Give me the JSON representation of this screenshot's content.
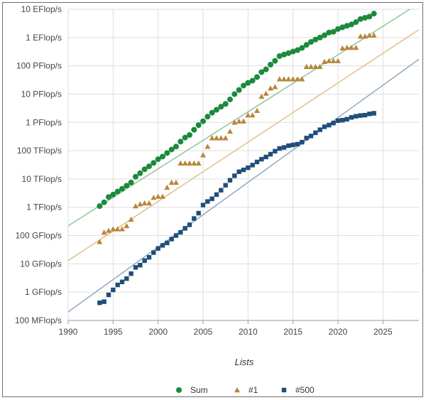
{
  "chart_data": {
    "type": "scatter",
    "title": "",
    "xlabel": "Lists",
    "ylabel": "",
    "y_scale": "log",
    "grid": true,
    "legend_position": "bottom",
    "xlim": [
      1990,
      2029
    ],
    "ylim": [
      100000000.0,
      1e+19
    ],
    "x_ticks": [
      1990,
      1995,
      2000,
      2005,
      2010,
      2015,
      2020,
      2025
    ],
    "y_ticks": [
      {
        "value": 100000000.0,
        "label": "100 MFlop/s"
      },
      {
        "value": 1000000000.0,
        "label": "1 GFlop/s"
      },
      {
        "value": 10000000000.0,
        "label": "10 GFlop/s"
      },
      {
        "value": 100000000000.0,
        "label": "100 GFlop/s"
      },
      {
        "value": 1000000000000.0,
        "label": "1 TFlop/s"
      },
      {
        "value": 10000000000000.0,
        "label": "10 TFlop/s"
      },
      {
        "value": 100000000000000.0,
        "label": "100 TFlop/s"
      },
      {
        "value": 1000000000000000.0,
        "label": "1 PFlop/s"
      },
      {
        "value": 1e+16,
        "label": "10 PFlop/s"
      },
      {
        "value": 1e+17,
        "label": "100 PFlop/s"
      },
      {
        "value": 1e+18,
        "label": "1 EFlop/s"
      },
      {
        "value": 1e+19,
        "label": "10 EFlop/s"
      }
    ],
    "series": [
      {
        "name": "Sum",
        "marker": "circle",
        "color": "#1b8a3c",
        "trend_color": "#8cc79a",
        "trend": [
          [
            1990,
            220000000000.0
          ],
          [
            2029,
            1.6e+19
          ]
        ],
        "points": [
          [
            1993.5,
            1100000000000.0
          ],
          [
            1994.0,
            1500000000000.0
          ],
          [
            1994.5,
            2300000000000.0
          ],
          [
            1995.0,
            2800000000000.0
          ],
          [
            1995.5,
            3600000000000.0
          ],
          [
            1996.0,
            4500000000000.0
          ],
          [
            1996.5,
            5800000000000.0
          ],
          [
            1997.0,
            7500000000000.0
          ],
          [
            1997.5,
            12000000000000.0
          ],
          [
            1998.0,
            16000000000000.0
          ],
          [
            1998.5,
            22000000000000.0
          ],
          [
            1999.0,
            28000000000000.0
          ],
          [
            1999.5,
            37000000000000.0
          ],
          [
            2000.0,
            50000000000000.0
          ],
          [
            2000.5,
            62000000000000.0
          ],
          [
            2001.0,
            83000000000000.0
          ],
          [
            2001.5,
            110000000000000.0
          ],
          [
            2002.0,
            140000000000000.0
          ],
          [
            2002.5,
            210000000000000.0
          ],
          [
            2003.0,
            290000000000000.0
          ],
          [
            2003.5,
            360000000000000.0
          ],
          [
            2004.0,
            550000000000000.0
          ],
          [
            2004.5,
            800000000000000.0
          ],
          [
            2005.0,
            1100000000000000.0
          ],
          [
            2005.5,
            1600000000000000.0
          ],
          [
            2006.0,
            2200000000000000.0
          ],
          [
            2006.5,
            2800000000000000.0
          ],
          [
            2007.0,
            3600000000000000.0
          ],
          [
            2007.5,
            4500000000000000.0
          ],
          [
            2008.0,
            6500000000000000.0
          ],
          [
            2008.5,
            1e+16
          ],
          [
            2009.0,
            1.4e+16
          ],
          [
            2009.5,
            2e+16
          ],
          [
            2010.0,
            2.5e+16
          ],
          [
            2010.5,
            3e+16
          ],
          [
            2011.0,
            4e+16
          ],
          [
            2011.5,
            6e+16
          ],
          [
            2012.0,
            7.5e+16
          ],
          [
            2012.5,
            1.1e+17
          ],
          [
            2013.0,
            1.5e+17
          ],
          [
            2013.5,
            2.2e+17
          ],
          [
            2014.0,
            2.5e+17
          ],
          [
            2014.5,
            2.8e+17
          ],
          [
            2015.0,
            3.2e+17
          ],
          [
            2015.5,
            3.6e+17
          ],
          [
            2016.0,
            4.3e+17
          ],
          [
            2016.5,
            5.5e+17
          ],
          [
            2017.0,
            7e+17
          ],
          [
            2017.5,
            8.5e+17
          ],
          [
            2018.0,
            1e+18
          ],
          [
            2018.5,
            1.2e+18
          ],
          [
            2019.0,
            1.5e+18
          ],
          [
            2019.5,
            1.6e+18
          ],
          [
            2020.0,
            2e+18
          ],
          [
            2020.5,
            2.3e+18
          ],
          [
            2021.0,
            2.6e+18
          ],
          [
            2021.5,
            2.9e+18
          ],
          [
            2022.0,
            3.5e+18
          ],
          [
            2022.5,
            4.5e+18
          ],
          [
            2023.0,
            5e+18
          ],
          [
            2023.5,
            5.5e+18
          ],
          [
            2024.0,
            7e+18
          ]
        ]
      },
      {
        "name": "#1",
        "marker": "triangle",
        "color": "#b8863b",
        "trend_color": "#e0c08a",
        "trend": [
          [
            1990,
            13000000000.0
          ],
          [
            2029,
            1.9e+18
          ]
        ],
        "points": [
          [
            1993.5,
            60000000000.0
          ],
          [
            1994.0,
            130000000000.0
          ],
          [
            1994.5,
            150000000000.0
          ],
          [
            1995.0,
            170000000000.0
          ],
          [
            1995.5,
            170000000000.0
          ],
          [
            1996.0,
            170000000000.0
          ],
          [
            1996.5,
            220000000000.0
          ],
          [
            1997.0,
            370000000000.0
          ],
          [
            1997.5,
            1100000000000.0
          ],
          [
            1998.0,
            1300000000000.0
          ],
          [
            1998.5,
            1400000000000.0
          ],
          [
            1999.0,
            1400000000000.0
          ],
          [
            1999.5,
            2200000000000.0
          ],
          [
            2000.0,
            2400000000000.0
          ],
          [
            2000.5,
            2400000000000.0
          ],
          [
            2001.0,
            5000000000000.0
          ],
          [
            2001.5,
            7500000000000.0
          ],
          [
            2002.0,
            7500000000000.0
          ],
          [
            2002.5,
            36000000000000.0
          ],
          [
            2003.0,
            36000000000000.0
          ],
          [
            2003.5,
            36000000000000.0
          ],
          [
            2004.0,
            36000000000000.0
          ],
          [
            2004.5,
            36000000000000.0
          ],
          [
            2005.0,
            70000000000000.0
          ],
          [
            2005.5,
            140000000000000.0
          ],
          [
            2006.0,
            280000000000000.0
          ],
          [
            2006.5,
            280000000000000.0
          ],
          [
            2007.0,
            280000000000000.0
          ],
          [
            2007.5,
            280000000000000.0
          ],
          [
            2008.0,
            480000000000000.0
          ],
          [
            2008.5,
            1000000000000000.0
          ],
          [
            2009.0,
            1100000000000000.0
          ],
          [
            2009.5,
            1100000000000000.0
          ],
          [
            2010.0,
            1800000000000000.0
          ],
          [
            2010.5,
            1800000000000000.0
          ],
          [
            2011.0,
            2600000000000000.0
          ],
          [
            2011.5,
            8200000000000000.0
          ],
          [
            2012.0,
            1.05e+16
          ],
          [
            2012.5,
            1.6e+16
          ],
          [
            2013.0,
            1.8e+16
          ],
          [
            2013.5,
            3.4e+16
          ],
          [
            2014.0,
            3.4e+16
          ],
          [
            2014.5,
            3.4e+16
          ],
          [
            2015.0,
            3.4e+16
          ],
          [
            2015.5,
            3.4e+16
          ],
          [
            2016.0,
            3.4e+16
          ],
          [
            2016.5,
            9.3e+16
          ],
          [
            2017.0,
            9.3e+16
          ],
          [
            2017.5,
            9.3e+16
          ],
          [
            2018.0,
            9.3e+16
          ],
          [
            2018.5,
            1.4e+17
          ],
          [
            2019.0,
            1.5e+17
          ],
          [
            2019.5,
            1.5e+17
          ],
          [
            2020.0,
            1.5e+17
          ],
          [
            2020.5,
            4.2e+17
          ],
          [
            2021.0,
            4.4e+17
          ],
          [
            2021.5,
            4.4e+17
          ],
          [
            2022.0,
            4.4e+17
          ],
          [
            2022.5,
            1.1e+18
          ],
          [
            2023.0,
            1.1e+18
          ],
          [
            2023.5,
            1.2e+18
          ],
          [
            2024.0,
            1.2e+18
          ]
        ]
      },
      {
        "name": "#500",
        "marker": "square",
        "color": "#1f4e79",
        "trend_color": "#8da8c2",
        "trend": [
          [
            1990,
            200000000.0
          ],
          [
            2029,
            1.7e+17
          ]
        ],
        "points": [
          [
            1993.5,
            420000000.0
          ],
          [
            1994.0,
            460000000.0
          ],
          [
            1994.5,
            800000000.0
          ],
          [
            1995.0,
            1200000000.0
          ],
          [
            1995.5,
            1800000000.0
          ],
          [
            1996.0,
            2300000000.0
          ],
          [
            1996.5,
            3000000000.0
          ],
          [
            1997.0,
            4500000000.0
          ],
          [
            1997.5,
            7500000000.0
          ],
          [
            1998.0,
            9000000000.0
          ],
          [
            1998.5,
            13000000000.0
          ],
          [
            1999.0,
            17000000000.0
          ],
          [
            1999.5,
            25000000000.0
          ],
          [
            2000.0,
            35000000000.0
          ],
          [
            2000.5,
            45000000000.0
          ],
          [
            2001.0,
            55000000000.0
          ],
          [
            2001.5,
            75000000000.0
          ],
          [
            2002.0,
            100000000000.0
          ],
          [
            2002.5,
            130000000000.0
          ],
          [
            2003.0,
            180000000000.0
          ],
          [
            2003.5,
            240000000000.0
          ],
          [
            2004.0,
            400000000000.0
          ],
          [
            2004.5,
            620000000000.0
          ],
          [
            2005.0,
            1200000000000.0
          ],
          [
            2005.5,
            1600000000000.0
          ],
          [
            2006.0,
            2000000000000.0
          ],
          [
            2006.5,
            2800000000000.0
          ],
          [
            2007.0,
            4000000000000.0
          ],
          [
            2007.5,
            6000000000000.0
          ],
          [
            2008.0,
            9000000000000.0
          ],
          [
            2008.5,
            13000000000000.0
          ],
          [
            2009.0,
            18000000000000.0
          ],
          [
            2009.5,
            21000000000000.0
          ],
          [
            2010.0,
            25000000000000.0
          ],
          [
            2010.5,
            31000000000000.0
          ],
          [
            2011.0,
            40000000000000.0
          ],
          [
            2011.5,
            50000000000000.0
          ],
          [
            2012.0,
            60000000000000.0
          ],
          [
            2012.5,
            75000000000000.0
          ],
          [
            2013.0,
            96000000000000.0
          ],
          [
            2013.5,
            120000000000000.0
          ],
          [
            2014.0,
            130000000000000.0
          ],
          [
            2014.5,
            150000000000000.0
          ],
          [
            2015.0,
            160000000000000.0
          ],
          [
            2015.5,
            170000000000000.0
          ],
          [
            2016.0,
            200000000000000.0
          ],
          [
            2016.5,
            280000000000000.0
          ],
          [
            2017.0,
            330000000000000.0
          ],
          [
            2017.5,
            430000000000000.0
          ],
          [
            2018.0,
            550000000000000.0
          ],
          [
            2018.5,
            700000000000000.0
          ],
          [
            2019.0,
            800000000000000.0
          ],
          [
            2019.5,
            950000000000000.0
          ],
          [
            2020.0,
            1150000000000000.0
          ],
          [
            2020.5,
            1200000000000000.0
          ],
          [
            2021.0,
            1300000000000000.0
          ],
          [
            2021.5,
            1500000000000000.0
          ],
          [
            2022.0,
            1650000000000000.0
          ],
          [
            2022.5,
            1750000000000000.0
          ],
          [
            2023.0,
            1800000000000000.0
          ],
          [
            2023.5,
            2000000000000000.0
          ],
          [
            2024.0,
            2100000000000000.0
          ]
        ]
      }
    ]
  }
}
